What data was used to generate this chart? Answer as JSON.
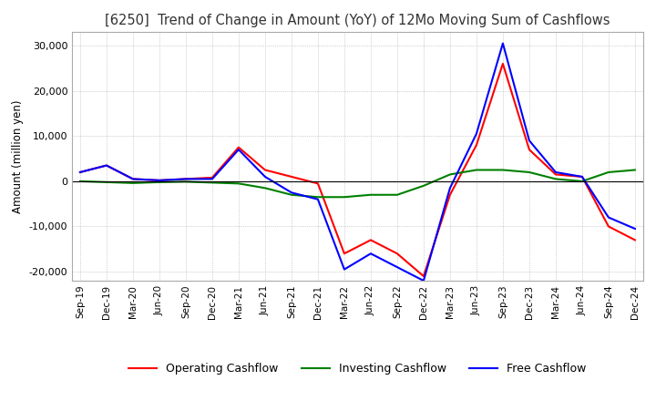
{
  "title": "[6250]  Trend of Change in Amount (YoY) of 12Mo Moving Sum of Cashflows",
  "ylabel": "Amount (million yen)",
  "ylim": [
    -22000,
    33000
  ],
  "yticks": [
    -20000,
    -10000,
    0,
    10000,
    20000,
    30000
  ],
  "x_labels": [
    "Sep-19",
    "Dec-19",
    "Mar-20",
    "Jun-20",
    "Sep-20",
    "Dec-20",
    "Mar-21",
    "Jun-21",
    "Sep-21",
    "Dec-21",
    "Mar-22",
    "Jun-22",
    "Sep-22",
    "Dec-22",
    "Mar-23",
    "Jun-23",
    "Sep-23",
    "Dec-23",
    "Mar-24",
    "Jun-24",
    "Sep-24",
    "Dec-24"
  ],
  "operating": [
    2000,
    3500,
    500,
    200,
    500,
    800,
    7500,
    2500,
    1000,
    -500,
    -16000,
    -13000,
    -16000,
    -21000,
    -3000,
    8000,
    26000,
    7000,
    1500,
    1000,
    -10000,
    -13000
  ],
  "investing": [
    0,
    -200,
    -400,
    -200,
    -100,
    -300,
    -500,
    -1500,
    -3000,
    -3500,
    -3500,
    -3000,
    -3000,
    -1000,
    1500,
    2500,
    2500,
    2000,
    500,
    0,
    2000,
    2500
  ],
  "free": [
    2000,
    3500,
    500,
    200,
    500,
    500,
    7000,
    1000,
    -2500,
    -4000,
    -19500,
    -16000,
    -19000,
    -22000,
    -1500,
    10500,
    30500,
    9000,
    2000,
    1000,
    -8000,
    -10500
  ],
  "line_colors": {
    "operating": "#ff0000",
    "investing": "#008000",
    "free": "#0000ff"
  },
  "legend_labels": [
    "Operating Cashflow",
    "Investing Cashflow",
    "Free Cashflow"
  ],
  "background_color": "#ffffff",
  "grid_color": "#aaaaaa"
}
